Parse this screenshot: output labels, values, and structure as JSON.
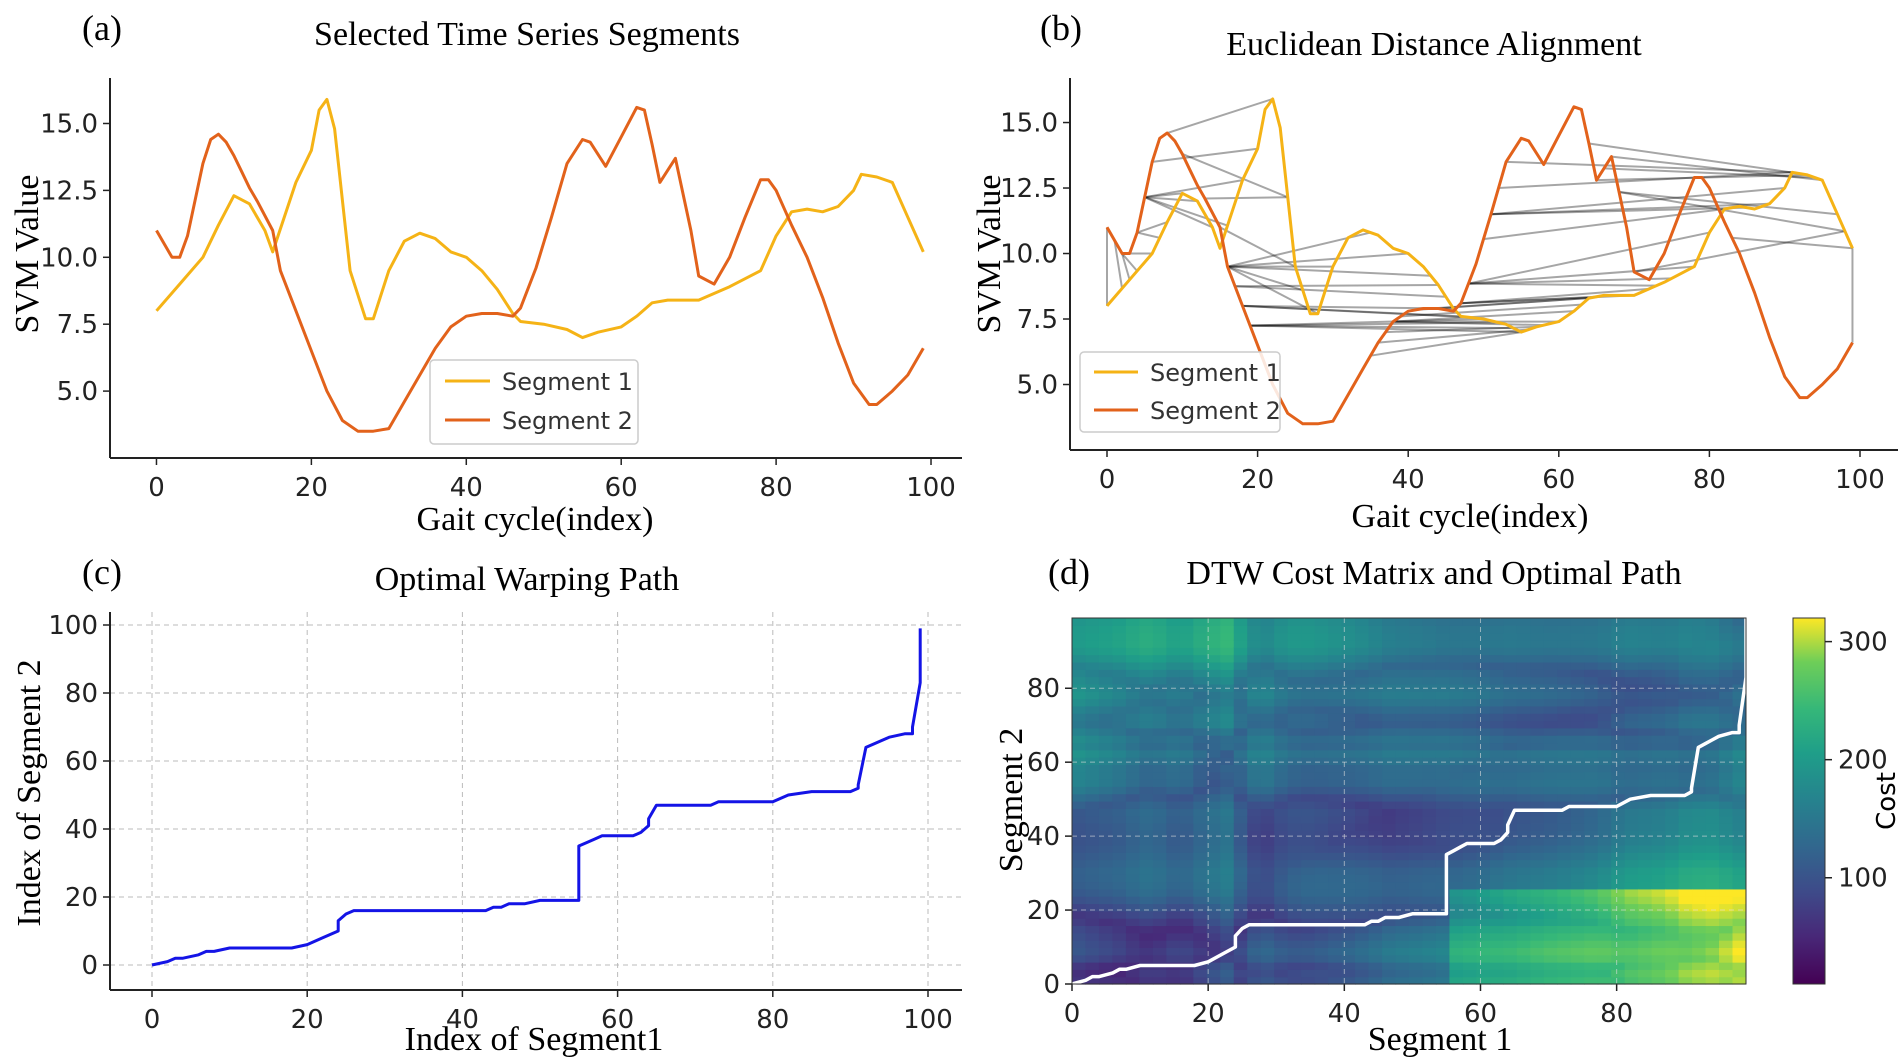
{
  "colors": {
    "segment1": "#f5b316",
    "segment2": "#e2621b",
    "path": "#1414e6",
    "dtw_path": "#ffffff",
    "alignment": "#000000"
  },
  "chart_data": [
    {
      "panel_label": "(a)",
      "type": "line",
      "title": "Selected Time Series Segments",
      "xlabel": "Gait cycle(index)",
      "ylabel": "SVM Value",
      "xlim": [
        -6,
        104
      ],
      "ylim": [
        2.5,
        16.7
      ],
      "xticks": [
        "0",
        "20",
        "40",
        "60",
        "80",
        "100"
      ],
      "yticks": [
        "5.0",
        "7.5",
        "10.0",
        "12.5",
        "15.0"
      ],
      "legend": {
        "position": "lower-right",
        "entries": [
          "Segment 1",
          "Segment 2"
        ]
      },
      "series": [
        {
          "name": "Segment 1",
          "x": [
            0,
            3,
            6,
            8,
            10,
            12,
            14,
            15,
            18,
            20,
            21,
            22,
            23,
            25,
            27,
            28,
            30,
            32,
            34,
            36,
            38,
            40,
            42,
            44,
            46,
            47,
            50,
            53,
            55,
            57,
            60,
            62,
            64,
            66,
            70,
            74,
            78,
            80,
            82,
            84,
            86,
            88,
            90,
            91,
            93,
            95,
            97,
            99
          ],
          "y": [
            8.0,
            9.0,
            10.0,
            11.2,
            12.3,
            12.0,
            11.0,
            10.2,
            12.8,
            14.0,
            15.5,
            15.9,
            14.8,
            9.5,
            7.7,
            7.7,
            9.5,
            10.6,
            10.9,
            10.7,
            10.2,
            10.0,
            9.5,
            8.8,
            7.9,
            7.6,
            7.5,
            7.3,
            7.0,
            7.2,
            7.4,
            7.8,
            8.3,
            8.4,
            8.4,
            8.9,
            9.5,
            10.8,
            11.7,
            11.8,
            11.7,
            11.9,
            12.5,
            13.1,
            13.0,
            12.8,
            11.5,
            10.2
          ]
        },
        {
          "name": "Segment 2",
          "x": [
            0,
            2,
            3,
            4,
            6,
            7,
            8,
            9,
            10,
            11,
            12,
            13,
            15,
            16,
            18,
            20,
            22,
            24,
            26,
            28,
            30,
            32,
            34,
            36,
            38,
            40,
            42,
            44,
            46,
            47,
            49,
            51,
            53,
            55,
            56,
            58,
            60,
            62,
            63,
            64,
            65,
            67,
            69,
            70,
            72,
            74,
            76,
            78,
            79,
            80,
            82,
            84,
            86,
            88,
            90,
            92,
            93,
            95,
            97,
            99
          ],
          "y": [
            11.0,
            10.0,
            10.0,
            10.8,
            13.5,
            14.4,
            14.6,
            14.3,
            13.8,
            13.2,
            12.6,
            12.1,
            11.0,
            9.5,
            8.0,
            6.5,
            5.0,
            3.9,
            3.5,
            3.5,
            3.6,
            4.6,
            5.6,
            6.6,
            7.4,
            7.8,
            7.9,
            7.9,
            7.8,
            8.1,
            9.6,
            11.5,
            13.5,
            14.4,
            14.3,
            13.4,
            14.5,
            15.6,
            15.5,
            14.2,
            12.8,
            13.7,
            11.0,
            9.3,
            9.0,
            10.0,
            11.5,
            12.9,
            12.9,
            12.5,
            11.2,
            10.0,
            8.5,
            6.8,
            5.3,
            4.5,
            4.5,
            5.0,
            5.6,
            6.6
          ]
        }
      ]
    },
    {
      "panel_label": "(b)",
      "type": "line",
      "title": "Euclidean Distance Alignment",
      "xlabel": "Gait cycle(index)",
      "ylabel": "SVM Value",
      "xlim": [
        -6,
        104
      ],
      "ylim": [
        2.5,
        16.7
      ],
      "xticks": [
        "0",
        "20",
        "40",
        "60",
        "80",
        "100"
      ],
      "yticks": [
        "5.0",
        "7.5",
        "10.0",
        "12.5",
        "15.0"
      ],
      "legend": {
        "position": "lower-left",
        "entries": [
          "Segment 1",
          "Segment 2"
        ]
      },
      "series_ref": "same as panel (a)",
      "alignment_lines": "DTW warping path pairs connecting Segment 1 index i to Segment 2 index j"
    },
    {
      "panel_label": "(c)",
      "type": "line",
      "title": "Optimal Warping Path",
      "xlabel": "Index of Segment1",
      "ylabel": "Index of Segment 2",
      "xlim": [
        -5,
        104
      ],
      "ylim": [
        -5,
        104
      ],
      "xticks": [
        "0",
        "20",
        "40",
        "60",
        "80",
        "100"
      ],
      "yticks": [
        "0",
        "20",
        "40",
        "60",
        "80",
        "100"
      ],
      "grid": true,
      "path": {
        "i": [
          0,
          2,
          3,
          4,
          6,
          7,
          8,
          10,
          12,
          14,
          16,
          18,
          20,
          22,
          24,
          24,
          25,
          26,
          28,
          30,
          35,
          40,
          43,
          44,
          45,
          46,
          47,
          48,
          50,
          52,
          54,
          55,
          55,
          56,
          57,
          58,
          60,
          62,
          63,
          64,
          64,
          65,
          70,
          72,
          73,
          75,
          78,
          80,
          82,
          85,
          88,
          90,
          91,
          91,
          92,
          93,
          94,
          95,
          97,
          98,
          98,
          99,
          99
        ],
        "j": [
          0,
          1,
          2,
          2,
          3,
          4,
          4,
          5,
          5,
          5,
          5,
          5,
          6,
          8,
          10,
          13,
          15,
          16,
          16,
          16,
          16,
          16,
          16,
          17,
          17,
          18,
          18,
          18,
          19,
          19,
          19,
          19,
          35,
          36,
          37,
          38,
          38,
          38,
          39,
          41,
          43,
          47,
          47,
          47,
          48,
          48,
          48,
          48,
          50,
          51,
          51,
          51,
          52,
          53,
          64,
          65,
          66,
          67,
          68,
          68,
          70,
          83,
          99
        ]
      }
    },
    {
      "panel_label": "(d)",
      "type": "heatmap",
      "title": "DTW Cost Matrix and Optimal Path",
      "xlabel": "Segment 1",
      "ylabel": "Segment 2",
      "xlim": [
        0,
        99
      ],
      "ylim": [
        0,
        99
      ],
      "xticks": [
        "0",
        "20",
        "40",
        "60",
        "80"
      ],
      "yticks": [
        "0",
        "20",
        "40",
        "60",
        "80"
      ],
      "colorbar": {
        "label": "Cost",
        "ticks": [
          "100",
          "200",
          "300"
        ],
        "range": [
          10,
          320
        ]
      },
      "colormap": "viridis",
      "path_ref": "same warping path as panel (c)"
    }
  ]
}
